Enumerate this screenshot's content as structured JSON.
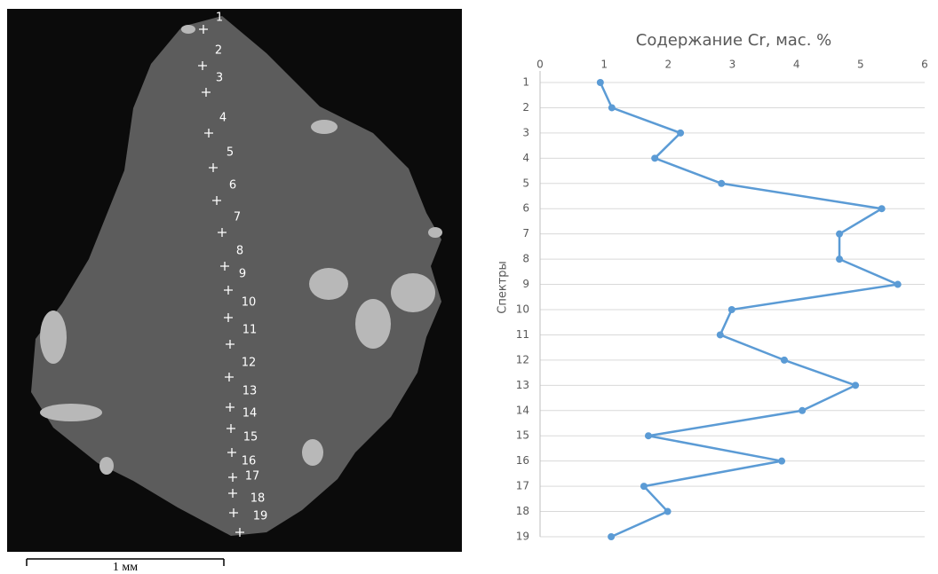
{
  "image": {
    "spot_labels": [
      "1",
      "2",
      "3",
      "4",
      "5",
      "6",
      "7",
      "8",
      "9",
      "10",
      "11",
      "12",
      "13",
      "14",
      "15",
      "16",
      "17",
      "18",
      "19"
    ],
    "scale_label": "1 мм"
  },
  "chart_data": {
    "type": "line",
    "title": "Содержание  Cr, мас. %",
    "y_axis_label": "Спектры",
    "categories": [
      "1",
      "2",
      "3",
      "4",
      "5",
      "6",
      "7",
      "8",
      "9",
      "10",
      "11",
      "12",
      "13",
      "14",
      "15",
      "16",
      "17",
      "18",
      "19"
    ],
    "series": [
      {
        "color": "#5b9bd5",
        "values": [
          0.94,
          1.12,
          2.19,
          1.79,
          2.83,
          5.33,
          4.67,
          4.67,
          5.58,
          2.99,
          2.81,
          3.81,
          4.92,
          4.09,
          1.69,
          3.77,
          1.62,
          1.99,
          1.11
        ]
      }
    ],
    "xlim": [
      0,
      6
    ],
    "xticks": [
      0,
      1,
      2,
      3,
      4,
      5,
      6
    ],
    "grid": true
  }
}
